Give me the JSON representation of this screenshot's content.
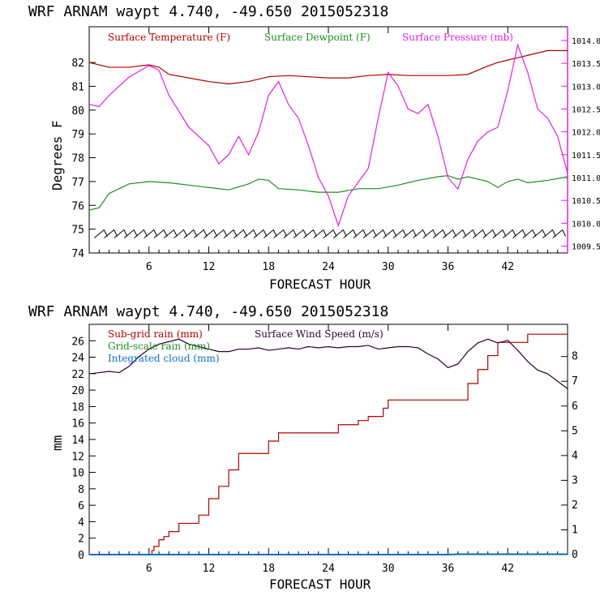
{
  "chart_data": [
    {
      "type": "line",
      "title": "WRF   ARNAM waypt    4.740, -49.650  2015052318",
      "xlabel": "FORECAST HOUR",
      "ylabel": "Degrees F",
      "xlim": [
        0,
        48
      ],
      "ylim": [
        74,
        83.5
      ],
      "y2lim": [
        1009.35,
        1014.3
      ],
      "x_ticks": [
        "6",
        "12",
        "18",
        "24",
        "30",
        "36",
        "42"
      ],
      "y_ticks": [
        "74",
        "75",
        "76",
        "77",
        "78",
        "79",
        "80",
        "81",
        "82"
      ],
      "y2_ticks": [
        "1009.5",
        "1010.0",
        "1010.5",
        "1011.0",
        "1011.5",
        "1012.0",
        "1012.5",
        "1013.0",
        "1013.5",
        "1014.0"
      ],
      "colors": {
        "temperature": "#b00000",
        "dewpoint": "#1e8c1e",
        "pressure": "#e020e0",
        "wind": "#000000"
      },
      "series": [
        {
          "name": "Surface Temperature (F)",
          "axis": "left",
          "x": [
            0,
            2,
            4,
            6,
            7,
            8,
            10,
            12,
            14,
            16,
            18,
            20,
            22,
            24,
            26,
            28,
            30,
            32,
            34,
            36,
            38,
            40,
            41,
            42,
            43,
            44,
            46,
            48
          ],
          "y": [
            82,
            81.8,
            81.8,
            81.9,
            81.8,
            81.5,
            81.35,
            81.2,
            81.1,
            81.2,
            81.4,
            81.45,
            81.4,
            81.35,
            81.35,
            81.45,
            81.5,
            81.45,
            81.45,
            81.45,
            81.5,
            81.85,
            82,
            82.1,
            82.2,
            82.3,
            82.5,
            82.5
          ]
        },
        {
          "name": "Surface Dewpoint (F)",
          "axis": "left",
          "x": [
            0,
            1,
            2,
            4,
            6,
            8,
            10,
            12,
            14,
            16,
            17,
            18,
            19,
            21,
            23,
            25,
            27,
            29,
            31,
            33,
            35,
            36,
            37,
            38,
            39,
            40,
            41,
            42,
            43,
            44,
            46,
            48
          ],
          "y": [
            75.8,
            75.9,
            76.5,
            76.9,
            77.0,
            76.95,
            76.85,
            76.75,
            76.65,
            76.9,
            77.1,
            77.05,
            76.7,
            76.65,
            76.55,
            76.55,
            76.7,
            76.7,
            76.85,
            77.05,
            77.2,
            77.25,
            77.1,
            77.2,
            77.1,
            77.0,
            76.75,
            77.0,
            77.1,
            76.95,
            77.05,
            77.2
          ]
        },
        {
          "name": "Surface Pressure (mb)",
          "axis": "right",
          "x": [
            0,
            1,
            2,
            4,
            6,
            7,
            8,
            10,
            12,
            13,
            14,
            15,
            16,
            17,
            18,
            19,
            20,
            21,
            22,
            23,
            24,
            25,
            26,
            27,
            28,
            29,
            30,
            31,
            32,
            33,
            34,
            35,
            36,
            37,
            38,
            39,
            40,
            41,
            42,
            43,
            44,
            45,
            46,
            47,
            48
          ],
          "y": [
            1012.6,
            1012.55,
            1012.8,
            1013.2,
            1013.45,
            1013.35,
            1012.8,
            1012.1,
            1011.7,
            1011.3,
            1011.5,
            1011.9,
            1011.5,
            1012.0,
            1012.8,
            1013.1,
            1012.6,
            1012.3,
            1011.7,
            1011.0,
            1010.6,
            1009.95,
            1010.6,
            1010.9,
            1011.2,
            1012.3,
            1013.3,
            1013.0,
            1012.5,
            1012.4,
            1012.6,
            1011.9,
            1011.0,
            1010.75,
            1011.4,
            1011.8,
            1012.0,
            1012.1,
            1012.9,
            1013.9,
            1013.3,
            1012.5,
            1012.3,
            1011.9,
            1011.1
          ]
        },
        {
          "name": "Surface Wind Speed (barbs)",
          "axis": "left",
          "type": "barbs",
          "x": [
            1,
            2,
            3,
            4,
            5,
            6,
            7,
            8,
            9,
            10,
            11,
            12,
            13,
            14,
            15,
            16,
            17,
            18,
            19,
            20,
            21,
            22,
            23,
            24,
            25,
            26,
            27,
            28,
            29,
            30,
            31,
            32,
            33,
            34,
            35,
            36,
            37,
            38,
            39,
            40,
            41,
            42,
            43,
            44,
            45,
            46,
            47
          ],
          "y": [
            74.8,
            74.8,
            74.8,
            74.8,
            74.8,
            74.8,
            74.8,
            74.8,
            74.8,
            74.8,
            74.8,
            74.8,
            74.8,
            74.8,
            74.8,
            74.8,
            74.8,
            74.8,
            74.8,
            74.8,
            74.8,
            74.8,
            74.8,
            74.8,
            74.8,
            74.8,
            74.8,
            74.8,
            74.8,
            74.8,
            74.8,
            74.8,
            74.8,
            74.8,
            74.8,
            74.8,
            74.8,
            74.8,
            74.8,
            74.8,
            74.8,
            74.8,
            74.8,
            74.8,
            74.8,
            74.8,
            74.8
          ]
        }
      ]
    },
    {
      "type": "line",
      "title": "WRF   ARNAM waypt    4.740, -49.650  2015052318",
      "xlabel": "FORECAST HOUR",
      "ylabel": "mm",
      "xlim": [
        0,
        48
      ],
      "ylim": [
        0,
        28
      ],
      "y2lim": [
        0,
        9.3
      ],
      "x_ticks": [
        "6",
        "12",
        "18",
        "24",
        "30",
        "36",
        "42"
      ],
      "y_ticks": [
        "0",
        "2",
        "4",
        "6",
        "8",
        "10",
        "12",
        "14",
        "16",
        "18",
        "20",
        "22",
        "24",
        "26"
      ],
      "y2_ticks": [
        "0",
        "1",
        "2",
        "3",
        "4",
        "5",
        "6",
        "7",
        "8"
      ],
      "colors": {
        "subgrid": "#b00000",
        "gridscale": "#1e8c1e",
        "cloud": "#1070c0",
        "wind": "#2a0030"
      },
      "series": [
        {
          "name": "Sub-grid rain (mm)",
          "axis": "left",
          "step": true,
          "x": [
            0,
            6,
            6.3,
            6.5,
            7,
            7.5,
            8,
            9,
            10,
            11,
            12,
            13,
            14,
            15,
            16,
            17,
            18,
            19,
            20,
            22,
            24,
            25,
            26,
            27,
            28,
            29,
            29.5,
            30,
            31,
            32,
            33,
            34,
            35,
            36,
            37,
            38,
            39,
            40,
            41,
            42,
            43,
            44,
            45,
            46,
            47,
            48
          ],
          "y": [
            0,
            0,
            0.5,
            1,
            1.8,
            2.2,
            2.8,
            3.8,
            3.8,
            4.8,
            6.8,
            8.3,
            10.3,
            12.3,
            12.3,
            12.3,
            13.8,
            14.8,
            14.8,
            14.8,
            14.8,
            15.8,
            15.8,
            16.3,
            16.8,
            16.8,
            17.8,
            18.8,
            18.8,
            18.8,
            18.8,
            18.8,
            18.8,
            18.8,
            18.8,
            20.8,
            22.5,
            24.2,
            25.8,
            25.8,
            25.8,
            26.8,
            26.8,
            26.8,
            26.8,
            26.8
          ]
        },
        {
          "name": "Grid-scale rain (mm)",
          "axis": "left",
          "x": [
            0,
            48
          ],
          "y": [
            0,
            0
          ]
        },
        {
          "name": "Integrated cloud (mm)",
          "axis": "left",
          "x": [
            0,
            36,
            37,
            48
          ],
          "y": [
            0,
            0,
            0.05,
            0.05
          ]
        },
        {
          "name": "Surface Wind Speed (m/s)",
          "axis": "right",
          "x": [
            0,
            1,
            2,
            3,
            4,
            5,
            6,
            7,
            8,
            9,
            10,
            11,
            12,
            13,
            14,
            15,
            16,
            17,
            18,
            19,
            20,
            21,
            22,
            23,
            24,
            25,
            26,
            27,
            28,
            29,
            30,
            31,
            32,
            33,
            34,
            35,
            36,
            37,
            38,
            39,
            40,
            41,
            42,
            43,
            44,
            45,
            46,
            47,
            48
          ],
          "y": [
            7.3,
            7.35,
            7.4,
            7.35,
            7.6,
            8.0,
            8.3,
            8.5,
            8.6,
            8.7,
            8.5,
            8.4,
            8.3,
            8.2,
            8.2,
            8.3,
            8.3,
            8.35,
            8.25,
            8.3,
            8.35,
            8.3,
            8.4,
            8.35,
            8.4,
            8.35,
            8.4,
            8.4,
            8.45,
            8.3,
            8.35,
            8.4,
            8.4,
            8.35,
            8.1,
            7.9,
            7.55,
            7.7,
            8.2,
            8.55,
            8.7,
            8.55,
            8.65,
            8.25,
            7.8,
            7.45,
            7.3,
            7.0,
            6.7
          ]
        }
      ]
    }
  ]
}
